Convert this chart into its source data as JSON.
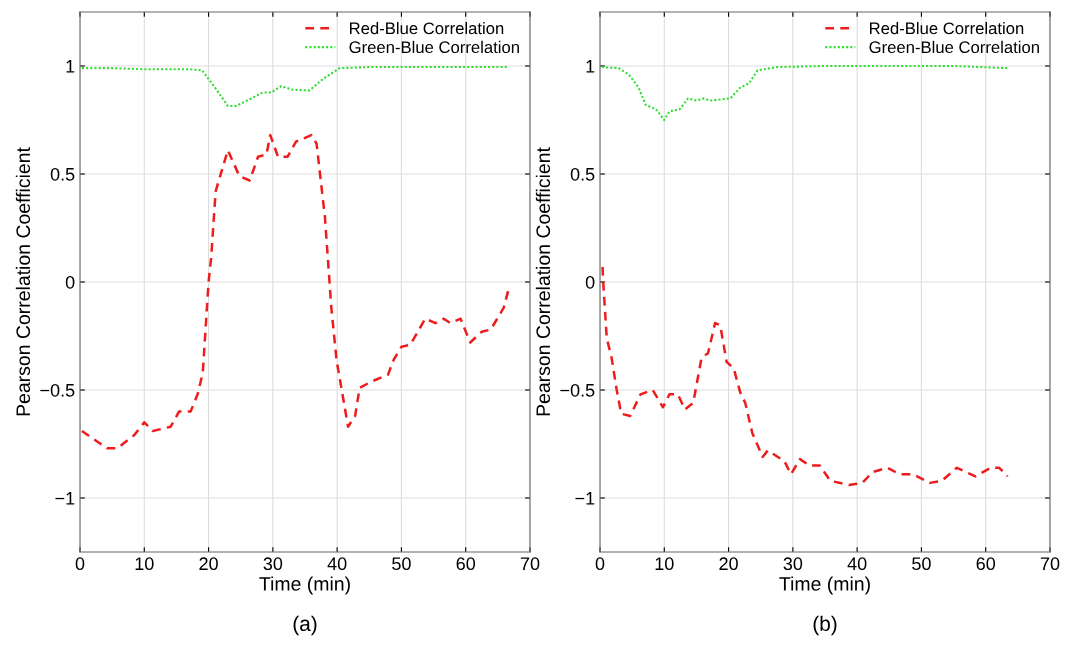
{
  "chart_data": [
    {
      "type": "line",
      "xlabel": "Time (min)",
      "ylabel": "Pearson Correlation Coefficient",
      "annotations": [
        "(a)"
      ],
      "xlim": [
        0,
        70
      ],
      "xticks": [
        0,
        10,
        20,
        30,
        40,
        50,
        60,
        70
      ],
      "ylim": [
        -1.25,
        1.25
      ],
      "yticks": [
        -1,
        -0.5,
        0,
        0.5,
        1
      ],
      "grid": true,
      "legend": "top right",
      "marker": "none",
      "series": [
        {
          "name": "Red-Blue Correlation",
          "color": "#ee1c1c",
          "line_style": "dashed",
          "x": [
            0.3,
            4.2,
            5.8,
            8.4,
            10,
            11.3,
            14.1,
            15.4,
            17.2,
            18.3,
            19.1,
            20,
            20.4,
            21.1,
            23,
            24.8,
            26.4,
            27.7,
            29,
            29.6,
            30.8,
            32.3,
            33.6,
            36,
            36.8,
            38.1,
            39.1,
            39.9,
            41.7,
            42.8,
            43.5,
            45.4,
            47.9,
            48.8,
            50,
            51.4,
            53.7,
            55.3,
            56.6,
            57.6,
            59.2,
            60.7,
            62.5,
            63.9,
            65.9,
            66.7
          ],
          "values": [
            -0.69,
            -0.77,
            -0.77,
            -0.71,
            -0.65,
            -0.69,
            -0.67,
            -0.6,
            -0.6,
            -0.52,
            -0.42,
            0,
            0.11,
            0.42,
            0.61,
            0.49,
            0.47,
            0.58,
            0.59,
            0.68,
            0.58,
            0.58,
            0.65,
            0.68,
            0.64,
            0.3,
            -0.12,
            -0.36,
            -0.67,
            -0.62,
            -0.49,
            -0.46,
            -0.43,
            -0.36,
            -0.3,
            -0.29,
            -0.17,
            -0.19,
            -0.17,
            -0.19,
            -0.17,
            -0.28,
            -0.23,
            -0.22,
            -0.12,
            -0.03
          ]
        },
        {
          "name": "Green-Blue Correlation",
          "color": "#33dd33",
          "line_style": "dotted",
          "x": [
            0.3,
            5,
            10,
            14,
            17,
            19,
            21,
            23,
            24.3,
            26.4,
            28.4,
            29.7,
            31.3,
            33.1,
            35.7,
            37.8,
            40.4,
            45,
            50,
            55,
            60,
            66.5
          ],
          "values": [
            0.99,
            0.99,
            0.985,
            0.985,
            0.985,
            0.98,
            0.9,
            0.815,
            0.815,
            0.846,
            0.877,
            0.877,
            0.907,
            0.89,
            0.887,
            0.94,
            0.99,
            0.995,
            0.995,
            0.995,
            0.995,
            0.995
          ]
        }
      ]
    },
    {
      "type": "line",
      "xlabel": "Time (min)",
      "ylabel": "Pearson Correlation Coefficient",
      "annotations": [
        "(b)"
      ],
      "xlim": [
        0,
        70
      ],
      "xticks": [
        0,
        10,
        20,
        30,
        40,
        50,
        60,
        70
      ],
      "ylim": [
        -1.25,
        1.25
      ],
      "yticks": [
        -1,
        -0.5,
        0,
        0.5,
        1
      ],
      "grid": true,
      "legend": "top right",
      "marker": "none",
      "series": [
        {
          "name": "Red-Blue Correlation",
          "color": "#ee1c1c",
          "line_style": "dashed",
          "x": [
            0.4,
            0.5,
            1.05,
            1.8,
            2.6,
            3.3,
            4.7,
            6.3,
            8.2,
            9.8,
            10.8,
            12.1,
            13.2,
            14.5,
            15.8,
            16.8,
            17.9,
            18.7,
            19.7,
            20.8,
            21.8,
            22.6,
            23.7,
            25.3,
            26.1,
            28.7,
            29.7,
            31.1,
            32.6,
            34.2,
            35.8,
            38.7,
            40.8,
            42.4,
            44.7,
            46.6,
            48.7,
            51.3,
            53.2,
            55.5,
            58.4,
            60.8,
            62.1,
            63.4
          ],
          "values": [
            0.07,
            0,
            -0.26,
            -0.35,
            -0.5,
            -0.61,
            -0.62,
            -0.52,
            -0.5,
            -0.58,
            -0.52,
            -0.52,
            -0.59,
            -0.56,
            -0.35,
            -0.33,
            -0.19,
            -0.2,
            -0.37,
            -0.4,
            -0.51,
            -0.56,
            -0.7,
            -0.81,
            -0.78,
            -0.83,
            -0.89,
            -0.82,
            -0.85,
            -0.85,
            -0.92,
            -0.94,
            -0.93,
            -0.88,
            -0.86,
            -0.89,
            -0.89,
            -0.93,
            -0.92,
            -0.86,
            -0.9,
            -0.86,
            -0.86,
            -0.9
          ]
        },
        {
          "name": "Green-Blue Correlation",
          "color": "#33dd33",
          "line_style": "dotted",
          "x": [
            0.3,
            2.9,
            4.5,
            6,
            7.1,
            8.7,
            10,
            10.8,
            12.4,
            13.7,
            15,
            16.1,
            17.1,
            20.3,
            21.8,
            23.2,
            24.5,
            27.6,
            35,
            45,
            55,
            63.4
          ],
          "values": [
            0.995,
            0.99,
            0.96,
            0.9,
            0.82,
            0.8,
            0.75,
            0.79,
            0.8,
            0.85,
            0.84,
            0.85,
            0.84,
            0.85,
            0.9,
            0.92,
            0.98,
            0.995,
            1.0,
            1.0,
            1.0,
            0.99
          ]
        }
      ]
    }
  ]
}
